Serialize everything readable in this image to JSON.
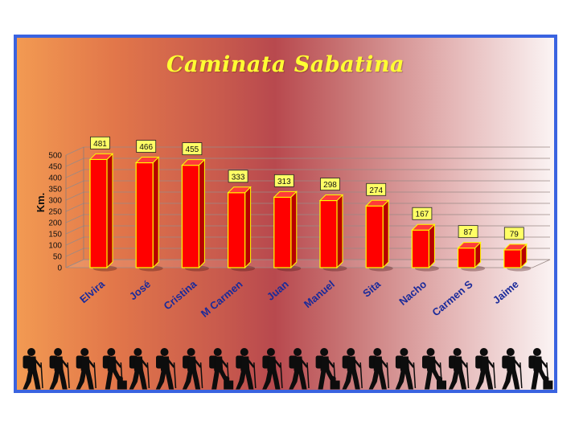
{
  "chart_data": {
    "type": "bar",
    "title": "Caminata Sabatina",
    "ylabel": "Km.",
    "xlabel": "",
    "ylim": [
      0,
      500
    ],
    "yticks": [
      0,
      50,
      100,
      150,
      200,
      250,
      300,
      350,
      400,
      450,
      500
    ],
    "grid": true,
    "categories": [
      "Elvira",
      "José",
      "Cristina",
      "M Carmen",
      "Juan",
      "Manuel",
      "Sita",
      "Nacho",
      "Carmen S",
      "Jaime"
    ],
    "values": [
      481,
      466,
      455,
      333,
      313,
      298,
      274,
      167,
      87,
      79
    ],
    "bar_color": "#ff0000",
    "bar_edge_color": "#ffff00",
    "label_box_color": "#ffff66",
    "category_label_color": "#1a2a9a",
    "title_color": "#ffff33"
  },
  "decoration": {
    "hiker_silhouette_count": 20
  }
}
